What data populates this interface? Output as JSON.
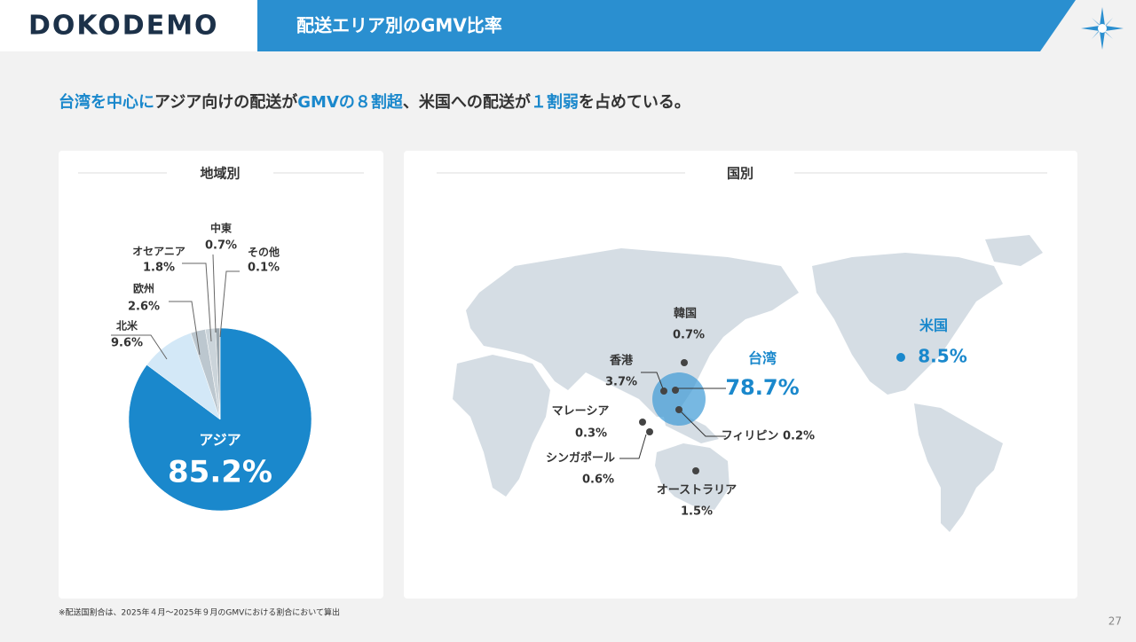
{
  "header": {
    "logo": "DOKODEMO",
    "title": "配送エリア別のGMV比率"
  },
  "headline": [
    {
      "text": "台湾を中心に",
      "accent": true
    },
    {
      "text": "アジア向けの配送が",
      "accent": false
    },
    {
      "text": "GMVの８割超",
      "accent": true
    },
    {
      "text": "、米国への配送が",
      "accent": false
    },
    {
      "text": "１割弱",
      "accent": true
    },
    {
      "text": "を占めている。",
      "accent": false
    }
  ],
  "chart_data": {
    "type": "pie",
    "title": "地域別",
    "categories": [
      "アジア",
      "北米",
      "欧州",
      "オセアニア",
      "中東",
      "その他"
    ],
    "values": [
      85.2,
      9.6,
      2.6,
      1.8,
      0.7,
      0.1
    ],
    "value_labels": [
      "85.2%",
      "9.6%",
      "2.6%",
      "1.8%",
      "0.7%",
      "0.1%"
    ],
    "colors": [
      "#1a88cc",
      "#d3e8f7",
      "#bcc7cf",
      "#cbd4da",
      "#9aa6ae",
      "#5a5f63"
    ]
  },
  "map": {
    "title": "国別",
    "countries": [
      {
        "name": "台湾",
        "share": "78.7%"
      },
      {
        "name": "米国",
        "share": "8.5%"
      },
      {
        "name": "香港",
        "share": "3.7%"
      },
      {
        "name": "オーストラリア",
        "share": "1.5%"
      },
      {
        "name": "韓国",
        "share": "0.7%"
      },
      {
        "name": "シンガポール",
        "share": "0.6%"
      },
      {
        "name": "マレーシア",
        "share": "0.3%"
      },
      {
        "name": "フィリピン",
        "share": "0.2%"
      }
    ]
  },
  "footnote": "※配送国割合は、2025年４月～2025年９月のGMVにおける割合において算出",
  "page_number": 27
}
